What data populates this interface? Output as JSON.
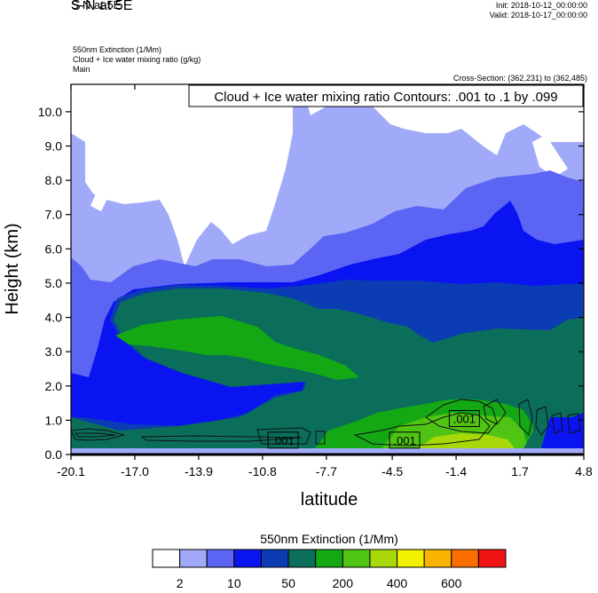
{
  "header": {
    "main_title": "S-N at 5E",
    "init": "Init: 2018-10-12_00:00:00",
    "valid": "Valid: 2018-10-17_00:00:00",
    "field1": "550nm Extinction   (1/Mm)",
    "field2": "Cloud + Ice water mixing ratio   (g/kg)",
    "field3": "Main",
    "cross_section": "Cross-Section: (362,231) to (362,485)"
  },
  "chart_data": {
    "type": "contour",
    "title": "Cloud + Ice water mixing ratio Contours: .001 to .1 by .099",
    "xlabel": "latitude",
    "ylabel": "Height (km)",
    "x_ticks": [
      "-20.1",
      "-17.0",
      "-13.9",
      "-10.8",
      "-7.7",
      "-4.5",
      "-1.4",
      "1.7",
      "4.8"
    ],
    "y_ticks": [
      "0.0",
      "1.0",
      "2.0",
      "3.0",
      "4.0",
      "5.0",
      "6.0",
      "7.0",
      "8.0",
      "9.0",
      "10.0"
    ],
    "xlim": [
      -20.1,
      4.8
    ],
    "ylim": [
      0.0,
      10.8
    ],
    "contour_labels": [
      {
        "text": ".001",
        "x": -9.8,
        "y": 0.42
      },
      {
        "text": ".001",
        "x": -3.9,
        "y": 0.42
      },
      {
        "text": ".001",
        "x": -1.0,
        "y": 1.05
      }
    ],
    "colorbar": {
      "title": "550nm Extinction  (1/Mm)",
      "colors": [
        "#ffffff",
        "#a0aaf8",
        "#5c64f4",
        "#0a14f0",
        "#0b3cb3",
        "#0a6e5a",
        "#14a814",
        "#50c414",
        "#a8d80a",
        "#f0f000",
        "#f8b400",
        "#f86e00",
        "#f01414"
      ],
      "labels": [
        "2",
        "10",
        "50",
        "200",
        "400",
        "600"
      ]
    }
  }
}
